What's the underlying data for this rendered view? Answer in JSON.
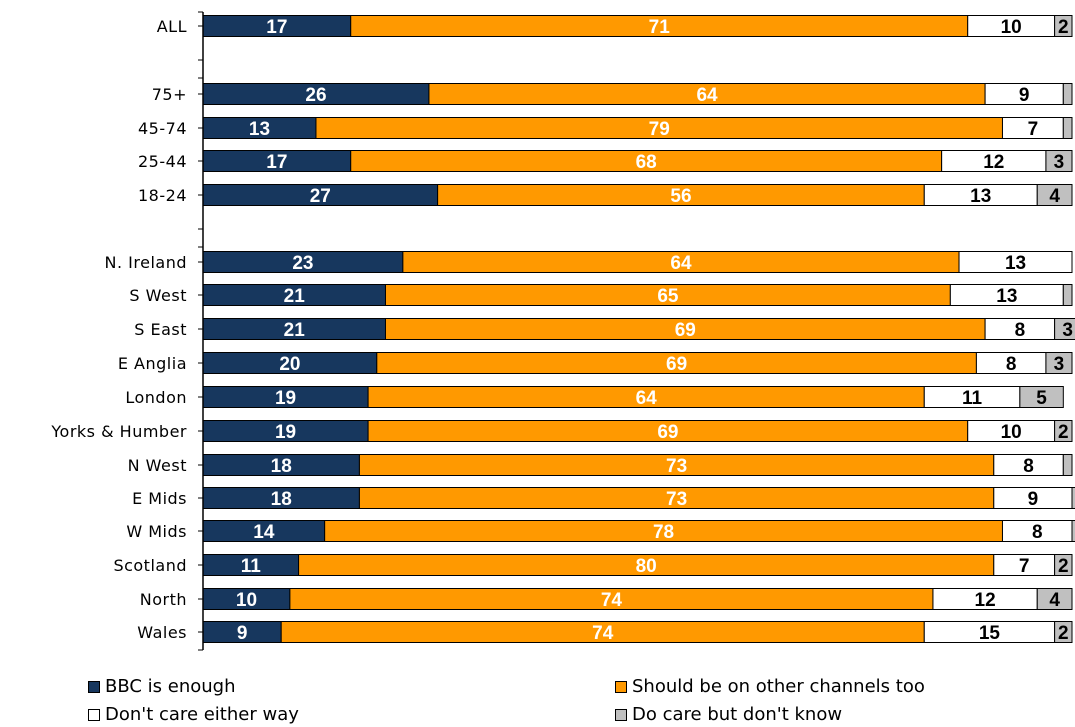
{
  "chart_data": {
    "type": "bar",
    "orientation": "horizontal",
    "stacked": true,
    "percent_scale": true,
    "xlim": [
      0,
      100
    ],
    "grid": false,
    "legend_placement": "bottom",
    "groups": [
      [
        "ALL"
      ],
      [
        "75+",
        "45-74",
        "25-44",
        "18-24"
      ],
      [
        "N. Ireland",
        "S West",
        "S East",
        "E Anglia",
        "London",
        "Yorks & Humber",
        "N West",
        "E Mids",
        "W Mids",
        "Scotland",
        "North",
        "Wales"
      ]
    ],
    "categories": [
      "ALL",
      "75+",
      "45-74",
      "25-44",
      "18-24",
      "N. Ireland",
      "S West",
      "S East",
      "E Anglia",
      "London",
      "Yorks & Humber",
      "N West",
      "E Mids",
      "W Mids",
      "Scotland",
      "North",
      "Wales"
    ],
    "series": [
      {
        "name": "BBC is enough",
        "color": "#17375E",
        "label_color": "#FFFFFF",
        "values": [
          17,
          26,
          13,
          17,
          27,
          23,
          21,
          21,
          20,
          19,
          19,
          18,
          18,
          14,
          11,
          10,
          9
        ]
      },
      {
        "name": "Should be on other channels too",
        "color": "#FF9900",
        "label_color": "#FFFFFF",
        "values": [
          71,
          64,
          79,
          68,
          56,
          64,
          65,
          69,
          69,
          64,
          69,
          73,
          73,
          78,
          80,
          74,
          74
        ]
      },
      {
        "name": "Don't care either way",
        "color": "#FFFFFF",
        "label_color": "#000000",
        "values": [
          10,
          9,
          7,
          12,
          13,
          13,
          13,
          8,
          8,
          11,
          10,
          8,
          9,
          8,
          7,
          12,
          15
        ]
      },
      {
        "name": "Do care but don't know",
        "color": "#C0C0C0",
        "label_color": "#000000",
        "values": [
          2,
          1,
          1,
          3,
          4,
          0,
          1,
          3,
          3,
          5,
          2,
          1,
          1,
          1,
          2,
          4,
          2
        ],
        "shown_labels": [
          true,
          false,
          false,
          true,
          true,
          false,
          false,
          true,
          true,
          true,
          true,
          false,
          false,
          false,
          true,
          true,
          true
        ]
      }
    ],
    "title": "",
    "xlabel": "",
    "ylabel": ""
  },
  "legend": {
    "items": [
      {
        "label": "BBC is enough",
        "color": "#17375E"
      },
      {
        "label": "Should be on other channels too",
        "color": "#FF9900"
      },
      {
        "label": "Don't care either way",
        "color": "#FFFFFF"
      },
      {
        "label": "Do care but don't know",
        "color": "#C0C0C0"
      }
    ]
  }
}
